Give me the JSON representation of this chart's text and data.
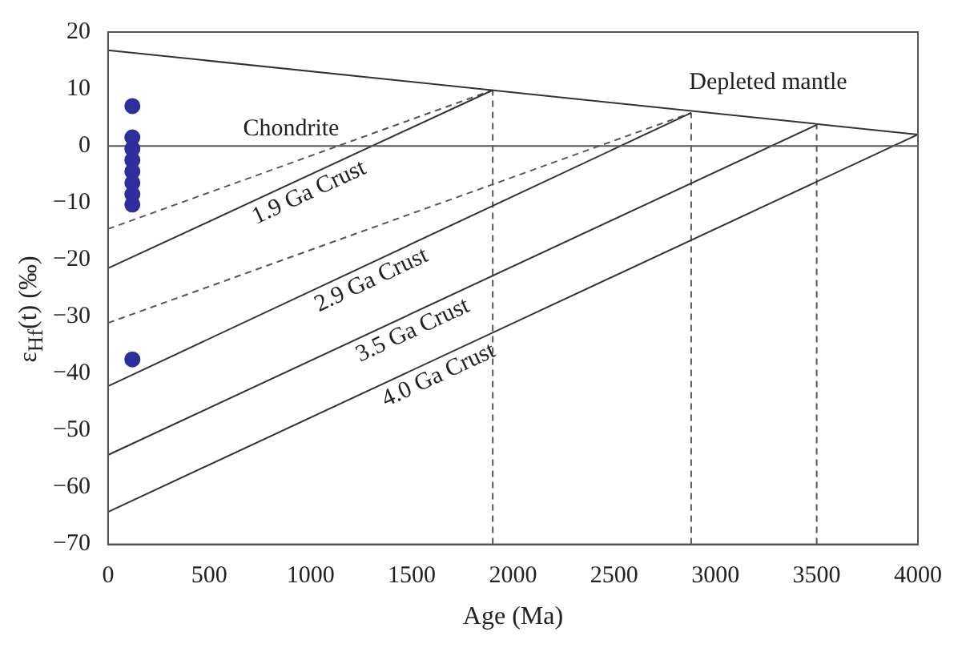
{
  "chart_data": {
    "type": "scatter",
    "xlabel": "Age (Ma)",
    "ylabel": "ε$_{Hf}$(t) (‰)",
    "xlim": [
      0,
      4000
    ],
    "xticks": [
      0,
      500,
      1000,
      1500,
      2000,
      2500,
      3000,
      3500,
      4000
    ],
    "ylim": [
      -70,
      20
    ],
    "yticks": [
      -70,
      -60,
      -50,
      -40,
      -30,
      -20,
      -10,
      0,
      10,
      20
    ],
    "grid": false,
    "legend": false,
    "marker": "circle",
    "series": [
      {
        "color": "#2e2e9e",
        "x": [
          120,
          120,
          120,
          120,
          120,
          120,
          120,
          120,
          120
        ],
        "values": [
          7.0,
          1.5,
          -0.5,
          -2.5,
          -4.5,
          -6.5,
          -8.5,
          -10.3,
          -37.5
        ]
      },
      {
        "type": "line",
        "color": "#333333",
        "line_style": "solid",
        "marker": "none",
        "x": [
          0,
          4000
        ],
        "values": [
          16.8,
          2.0
        ]
      },
      {
        "type": "line",
        "color": "#555555",
        "line_style": "solid",
        "marker": "none",
        "x": [
          0,
          4000
        ],
        "values": [
          0,
          0
        ]
      },
      {
        "type": "line",
        "color": "#333333",
        "line_style": "solid",
        "marker": "none",
        "x": [
          0,
          1900
        ],
        "values": [
          -21.5,
          9.8
        ]
      },
      {
        "type": "line",
        "color": "#555555",
        "line_style": "dashed",
        "marker": "none",
        "x": [
          0,
          1900
        ],
        "values": [
          -14.6,
          9.8
        ]
      },
      {
        "type": "line",
        "color": "#333333",
        "line_style": "solid",
        "marker": "none",
        "x": [
          0,
          2880
        ],
        "values": [
          -42.2,
          5.8
        ]
      },
      {
        "type": "line",
        "color": "#555555",
        "line_style": "dashed",
        "marker": "none",
        "x": [
          0,
          2880
        ],
        "values": [
          -31.1,
          5.8
        ]
      },
      {
        "type": "line",
        "color": "#333333",
        "line_style": "solid",
        "marker": "none",
        "x": [
          0,
          3500
        ],
        "values": [
          -54.3,
          3.7
        ]
      },
      {
        "type": "line",
        "color": "#333333",
        "line_style": "solid",
        "marker": "none",
        "x": [
          0,
          4000
        ],
        "values": [
          -64.3,
          2.0
        ]
      },
      {
        "type": "line",
        "color": "#555555",
        "line_style": "dashed",
        "marker": "none",
        "x": [
          1900,
          1900
        ],
        "values": [
          -70,
          9.8
        ]
      },
      {
        "type": "line",
        "color": "#555555",
        "line_style": "dashed",
        "marker": "none",
        "x": [
          2880,
          2880
        ],
        "values": [
          -70,
          5.8
        ]
      },
      {
        "type": "line",
        "color": "#555555",
        "line_style": "dashed",
        "marker": "none",
        "x": [
          3500,
          3500
        ],
        "values": [
          -70,
          3.7
        ]
      }
    ],
    "annotations": [
      "Chondrite",
      "Depleted mantle",
      "1.9 Ga Crust",
      "2.9 Ga Crust",
      "3.5 Ga Crust",
      "4.0 Ga Crust"
    ]
  }
}
